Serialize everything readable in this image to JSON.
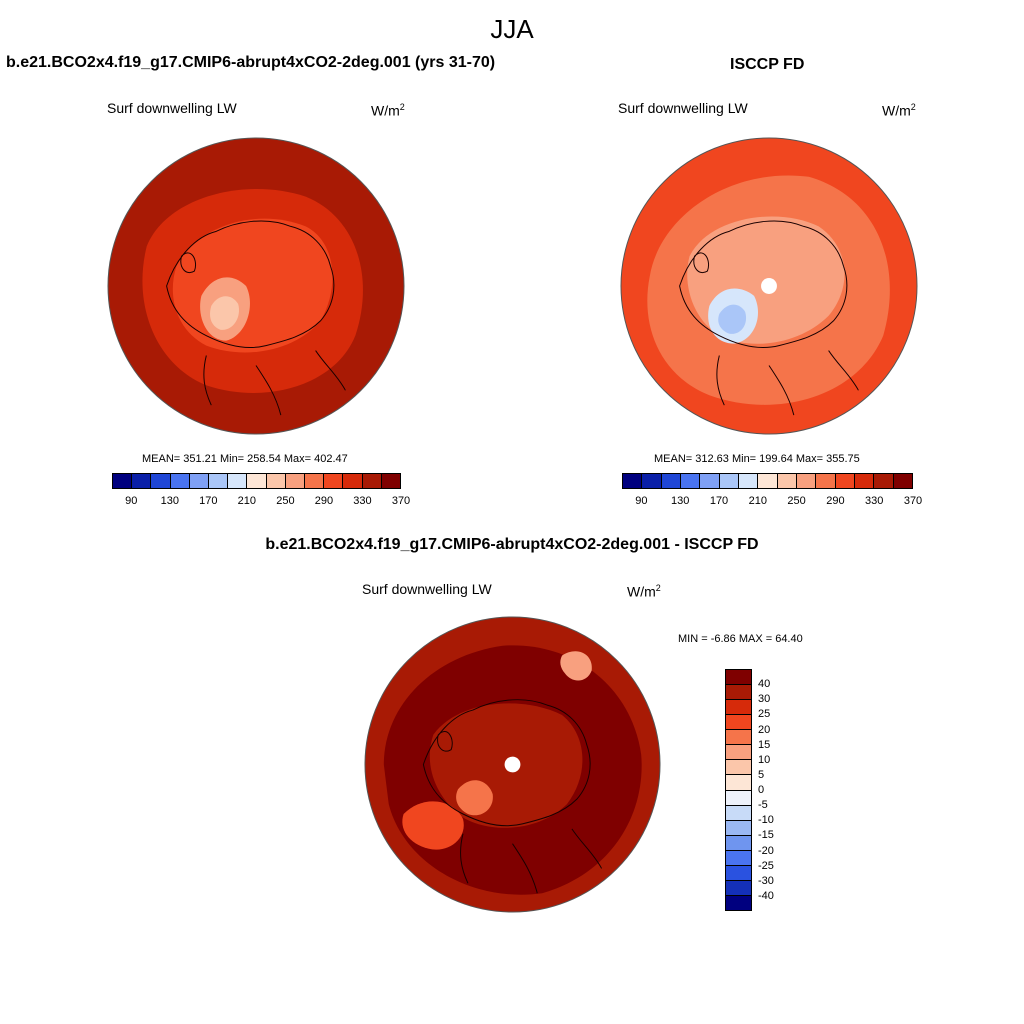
{
  "figure": {
    "season": "JJA"
  },
  "panels": [
    {
      "title": "b.e21.BCO2x4.f19_g17.CMIP6-abrupt4xCO2-2deg.001 (yrs 31-70)",
      "variable": "Surf downwelling LW",
      "units_base": "W/m",
      "units_exp": "2",
      "stats": "MEAN= 351.21  Min= 258.54  Max= 402.47",
      "pole_hole": false
    },
    {
      "title": "ISCCP FD",
      "variable": "Surf downwelling LW",
      "units_base": "W/m",
      "units_exp": "2",
      "stats": "MEAN= 312.63  Min= 199.64  Max= 355.75",
      "pole_hole": true
    },
    {
      "title": "b.e21.BCO2x4.f19_g17.CMIP6-abrupt4xCO2-2deg.001 - ISCCP FD",
      "variable": "Surf downwelling LW",
      "units_base": "W/m",
      "units_exp": "2",
      "stats": "MIN =  -6.86 MAX =  64.40",
      "pole_hole": true
    }
  ],
  "abs_colorbar": {
    "ticks": [
      "90",
      "130",
      "170",
      "210",
      "250",
      "290",
      "330",
      "370"
    ],
    "colors": [
      "#00007f",
      "#0a1fa8",
      "#1f46d6",
      "#4a74f0",
      "#7fa0f5",
      "#aac6f8",
      "#d6e6fb",
      "#fde6d6",
      "#fbc6aa",
      "#f8a07f",
      "#f5744a",
      "#f0461f",
      "#d62a0a",
      "#a81a05",
      "#7f0000"
    ]
  },
  "diff_colorbar": {
    "ticks": [
      "40",
      "30",
      "25",
      "20",
      "15",
      "10",
      "5",
      "0",
      "-5",
      "-10",
      "-15",
      "-20",
      "-25",
      "-30",
      "-40"
    ],
    "colors": [
      "#7f0000",
      "#a81a05",
      "#d62a0a",
      "#f0461f",
      "#f5744a",
      "#f8a07f",
      "#fbc6aa",
      "#fde6d6",
      "#eef2fb",
      "#c8dbf8",
      "#9ab8f3",
      "#6f95ef",
      "#4a74f0",
      "#2a52e0",
      "#1430b8",
      "#00007f"
    ]
  }
}
